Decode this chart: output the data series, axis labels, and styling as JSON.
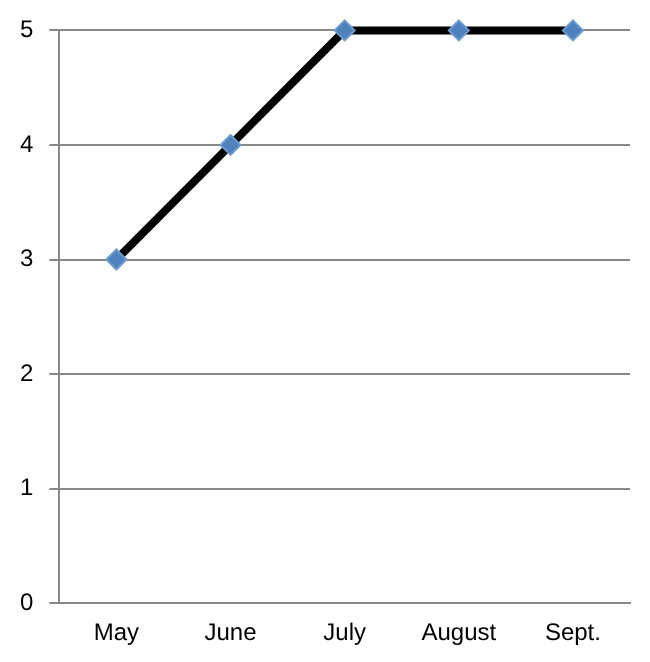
{
  "chart_data": {
    "type": "line",
    "categories": [
      "May",
      "June",
      "July",
      "August",
      "Sept."
    ],
    "series": [
      {
        "color": "#000000",
        "values": [
          3,
          4,
          5,
          5,
          5
        ]
      }
    ],
    "ylim": [
      0,
      5
    ],
    "yticks": [
      0,
      1,
      2,
      3,
      4,
      5
    ],
    "grid": "y",
    "marker": "diamond",
    "line_style": "solid"
  }
}
